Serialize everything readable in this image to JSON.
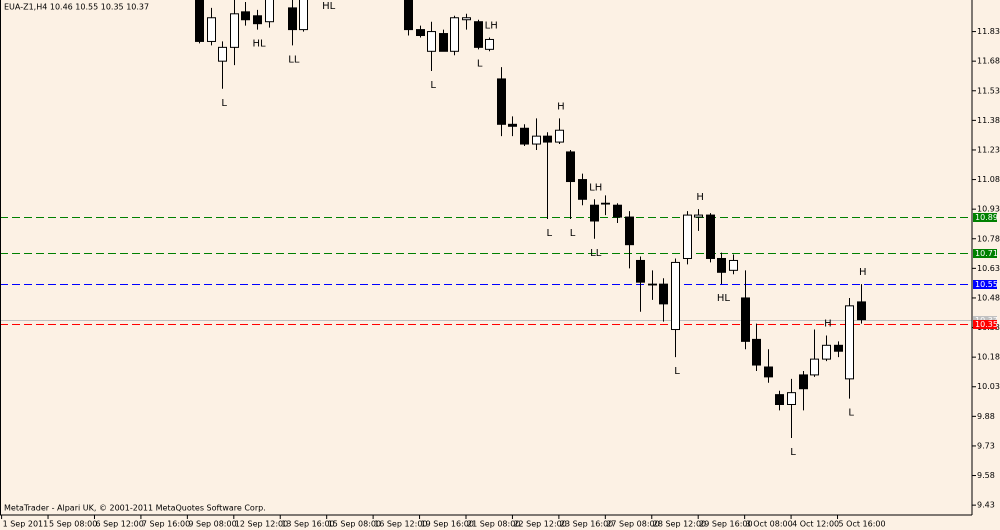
{
  "chart_data": {
    "type": "candlestick",
    "title": "EUA-Z1,H4  10.46 10.55 10.35 10.37",
    "footer": "MetaTrader - Alpari UK, © 2001-2011 MetaQuotes Software Corp.",
    "categories": [
      "1 Sep 2011",
      null,
      null,
      null,
      "5 Sep 08:00",
      null,
      null,
      null,
      "6 Sep 12:00",
      null,
      null,
      null,
      "7 Sep 16:00",
      null,
      null,
      null,
      "9 Sep 08:00",
      null,
      null,
      null,
      "12 Sep 12:00",
      null,
      null,
      null,
      "13 Sep 16:00",
      null,
      null,
      null,
      "15 Sep 08:00",
      null,
      null,
      null,
      "16 Sep 12:00",
      null,
      null,
      null,
      "19 Sep 16:00",
      null,
      null,
      null,
      "21 Sep 08:00",
      null,
      null,
      null,
      "22 Sep 12:00",
      null,
      null,
      null,
      "23 Sep 16:00",
      null,
      null,
      null,
      "27 Sep 08:00",
      null,
      null,
      null,
      "28 Sep 12:00",
      null,
      null,
      null,
      "29 Sep 16:00",
      null,
      null,
      null,
      "3 Oct 08:00",
      null,
      null,
      null,
      "4 Oct 12:00",
      null,
      null,
      null,
      "5 Oct 16:00",
      null,
      null
    ],
    "open": [
      null,
      null,
      null,
      null,
      null,
      null,
      null,
      null,
      null,
      null,
      null,
      null,
      null,
      null,
      null,
      null,
      null,
      12.05,
      11.78,
      11.68,
      11.75,
      11.93,
      11.91,
      11.88,
      null,
      11.95,
      11.84,
      null,
      12.08,
      null,
      null,
      null,
      null,
      null,
      null,
      12.02,
      11.84,
      11.73,
      11.82,
      11.73,
      11.89,
      11.88,
      11.74,
      11.59,
      11.36,
      11.34,
      11.26,
      11.3,
      11.27,
      11.22,
      11.08,
      10.95,
      10.96,
      10.95,
      10.89,
      10.67,
      10.55,
      10.55,
      10.32,
      10.68,
      10.89,
      10.9,
      10.68,
      10.62,
      10.48,
      10.27,
      10.13,
      9.99,
      9.94,
      10.09,
      10.09,
      10.17,
      10.24,
      10.07,
      10.46
    ],
    "high": [
      null,
      null,
      null,
      null,
      null,
      null,
      null,
      null,
      null,
      null,
      null,
      null,
      null,
      null,
      null,
      null,
      null,
      12.1,
      11.95,
      11.78,
      12.0,
      11.98,
      11.94,
      12.05,
      null,
      12.02,
      12.06,
      null,
      12.12,
      null,
      null,
      null,
      null,
      null,
      null,
      12.06,
      11.86,
      11.88,
      11.84,
      11.91,
      11.92,
      11.89,
      11.8,
      11.65,
      11.4,
      11.36,
      11.39,
      11.32,
      11.39,
      11.23,
      11.11,
      10.98,
      11.0,
      10.96,
      10.92,
      10.69,
      10.62,
      10.58,
      10.68,
      10.92,
      10.93,
      10.91,
      10.71,
      10.7,
      10.62,
      10.35,
      10.22,
      10.01,
      10.07,
      10.11,
      10.32,
      10.29,
      10.26,
      10.48,
      10.55
    ],
    "low": [
      null,
      null,
      null,
      null,
      null,
      null,
      null,
      null,
      null,
      null,
      null,
      null,
      null,
      null,
      null,
      null,
      null,
      11.77,
      11.76,
      11.54,
      11.66,
      11.86,
      11.84,
      11.85,
      null,
      11.76,
      11.83,
      null,
      12.03,
      null,
      null,
      null,
      null,
      null,
      null,
      11.81,
      11.8,
      11.63,
      11.73,
      11.71,
      11.84,
      11.74,
      11.73,
      11.3,
      11.3,
      11.25,
      11.23,
      10.88,
      11.26,
      10.88,
      10.95,
      10.78,
      10.9,
      10.86,
      10.63,
      10.41,
      10.47,
      10.36,
      10.18,
      10.65,
      10.82,
      10.66,
      10.55,
      10.6,
      10.22,
      10.11,
      10.05,
      9.91,
      9.77,
      9.91,
      10.08,
      10.16,
      10.18,
      9.97,
      10.35
    ],
    "close": [
      null,
      null,
      null,
      null,
      null,
      null,
      null,
      null,
      null,
      null,
      null,
      null,
      null,
      null,
      null,
      null,
      null,
      11.78,
      11.9,
      11.75,
      11.92,
      11.89,
      11.87,
      12.02,
      null,
      11.84,
      12.03,
      null,
      12.06,
      null,
      null,
      null,
      null,
      null,
      null,
      11.84,
      11.81,
      11.83,
      11.73,
      11.9,
      11.9,
      11.75,
      11.79,
      11.36,
      11.35,
      11.26,
      11.3,
      11.27,
      11.33,
      11.07,
      10.98,
      10.87,
      10.96,
      10.89,
      10.75,
      10.56,
      10.55,
      10.45,
      10.66,
      10.9,
      10.9,
      10.68,
      10.61,
      10.67,
      10.26,
      10.14,
      10.08,
      9.94,
      10.0,
      10.02,
      10.17,
      10.24,
      10.21,
      10.44,
      10.37
    ],
    "up_color": "#ffffff",
    "down_color": "#000000",
    "ylim": [
      9.38,
      11.99
    ],
    "yticks": [
      11.83,
      11.68,
      11.53,
      11.38,
      11.23,
      11.08,
      10.93,
      10.78,
      10.63,
      10.48,
      10.33,
      10.18,
      10.03,
      9.88,
      9.73,
      9.58,
      9.43
    ],
    "levels": [
      {
        "value": 10.89,
        "color": "#008000",
        "dashed": true
      },
      {
        "value": 10.71,
        "color": "#008000",
        "dashed": true
      },
      {
        "value": 10.55,
        "color": "#0000ff",
        "dashed": true
      },
      {
        "value": 10.37,
        "color": "#c0c0c0",
        "dashed": false
      },
      {
        "value": 10.35,
        "color": "#ff0000",
        "dashed": true
      }
    ],
    "annotations": [
      {
        "text": "L",
        "index": 19
      },
      {
        "text": "HL",
        "index": 22
      },
      {
        "text": "LL",
        "index": 25
      },
      {
        "text": "HL",
        "index": 28
      },
      {
        "text": "L",
        "index": 37
      },
      {
        "text": "L",
        "index": 41
      },
      {
        "text": "LH",
        "index": 42
      },
      {
        "text": "L",
        "index": 47
      },
      {
        "text": "H",
        "index": 48
      },
      {
        "text": "L",
        "index": 49
      },
      {
        "text": "LH",
        "index": 51
      },
      {
        "text": "LL",
        "index": 51
      },
      {
        "text": "L",
        "index": 58
      },
      {
        "text": "H",
        "index": 60
      },
      {
        "text": "HL",
        "index": 62
      },
      {
        "text": "L",
        "index": 68
      },
      {
        "text": "H",
        "index": 71
      },
      {
        "text": "L",
        "index": 73
      },
      {
        "text": "H",
        "index": 74
      }
    ],
    "grid": false
  }
}
